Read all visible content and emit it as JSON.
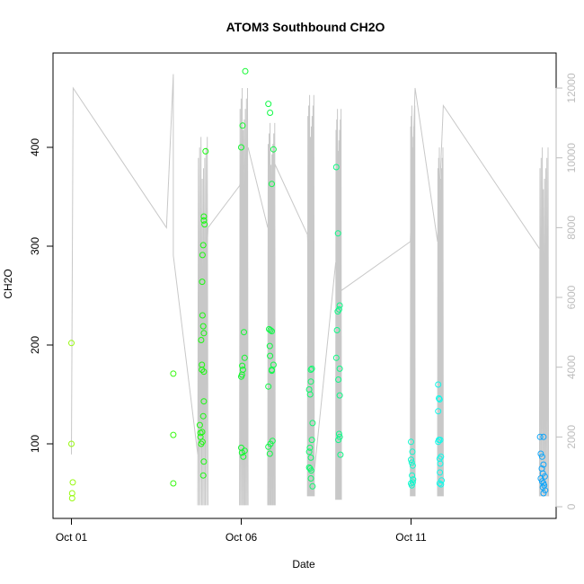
{
  "chart_data": {
    "type": "scatter",
    "title": "ATOM3 Southbound CH2O",
    "xlabel": "Date",
    "ylabel": "CH2O",
    "x_ticks": [
      {
        "label": "Oct 01",
        "day": 1
      },
      {
        "label": "Oct 06",
        "day": 6
      },
      {
        "label": "Oct 11",
        "day": 11
      }
    ],
    "xlim_days": [
      1,
      15.3
    ],
    "ylim": [
      35,
      485
    ],
    "y_ticks": [
      100,
      200,
      300,
      400
    ],
    "y2_ticks": [
      0,
      2000,
      4000,
      6000,
      8000,
      10000,
      12000
    ],
    "y2lim": [
      0,
      12000
    ],
    "grid": false,
    "series": [
      {
        "kind": "points",
        "color_scheme": "green-to-blue by date",
        "points": [
          [
            1.0,
            202
          ],
          [
            1.0,
            100
          ],
          [
            1.04,
            61
          ],
          [
            1.02,
            50
          ],
          [
            1.02,
            45
          ],
          [
            4.0,
            171
          ],
          [
            4.0,
            109
          ],
          [
            4.0,
            60
          ],
          [
            4.78,
            119
          ],
          [
            4.8,
            107
          ],
          [
            4.8,
            111
          ],
          [
            4.82,
            100
          ],
          [
            4.86,
            102
          ],
          [
            4.85,
            112
          ],
          [
            4.82,
            205
          ],
          [
            4.86,
            230
          ],
          [
            4.88,
            219
          ],
          [
            4.84,
            180
          ],
          [
            4.9,
            173
          ],
          [
            4.84,
            175
          ],
          [
            4.9,
            212
          ],
          [
            4.85,
            264
          ],
          [
            4.86,
            291
          ],
          [
            4.88,
            301
          ],
          [
            4.9,
            330
          ],
          [
            4.9,
            326
          ],
          [
            4.92,
            322
          ],
          [
            4.95,
            396
          ],
          [
            4.9,
            143
          ],
          [
            4.88,
            128
          ],
          [
            4.9,
            82
          ],
          [
            4.88,
            68
          ],
          [
            6.0,
            96
          ],
          [
            6.02,
            91
          ],
          [
            6.06,
            87
          ],
          [
            6.1,
            93
          ],
          [
            6.0,
            168
          ],
          [
            6.02,
            170
          ],
          [
            6.05,
            175
          ],
          [
            6.03,
            179
          ],
          [
            6.1,
            187
          ],
          [
            6.08,
            213
          ],
          [
            6.0,
            400
          ],
          [
            6.04,
            422
          ],
          [
            6.12,
            477
          ],
          [
            6.8,
            444
          ],
          [
            6.85,
            435
          ],
          [
            6.9,
            363
          ],
          [
            6.95,
            398
          ],
          [
            6.8,
            158
          ],
          [
            6.82,
            216
          ],
          [
            6.86,
            215
          ],
          [
            6.9,
            214
          ],
          [
            6.84,
            199
          ],
          [
            6.9,
            175
          ],
          [
            6.95,
            180
          ],
          [
            6.9,
            174
          ],
          [
            6.85,
            189
          ],
          [
            6.8,
            97
          ],
          [
            6.86,
            100
          ],
          [
            6.92,
            103
          ],
          [
            6.84,
            90
          ],
          [
            8.0,
            155
          ],
          [
            8.03,
            150
          ],
          [
            8.05,
            175
          ],
          [
            8.08,
            176
          ],
          [
            8.05,
            163
          ],
          [
            8.1,
            121
          ],
          [
            8.0,
            92
          ],
          [
            8.05,
            86
          ],
          [
            8.08,
            104
          ],
          [
            8.02,
            96
          ],
          [
            8.0,
            76
          ],
          [
            8.03,
            75
          ],
          [
            8.06,
            73
          ],
          [
            8.05,
            65
          ],
          [
            8.1,
            57
          ],
          [
            8.8,
            380
          ],
          [
            8.85,
            313
          ],
          [
            8.9,
            240
          ],
          [
            8.88,
            236
          ],
          [
            8.84,
            234
          ],
          [
            8.82,
            215
          ],
          [
            8.8,
            187
          ],
          [
            8.9,
            176
          ],
          [
            8.86,
            165
          ],
          [
            8.9,
            149
          ],
          [
            8.88,
            110
          ],
          [
            8.9,
            107
          ],
          [
            8.86,
            104
          ],
          [
            8.92,
            89
          ],
          [
            11.0,
            102
          ],
          [
            11.04,
            92
          ],
          [
            11.0,
            84
          ],
          [
            11.02,
            81
          ],
          [
            11.05,
            78
          ],
          [
            11.03,
            68
          ],
          [
            11.06,
            64
          ],
          [
            11.0,
            60
          ],
          [
            11.05,
            61
          ],
          [
            11.02,
            58
          ],
          [
            11.8,
            160
          ],
          [
            11.82,
            146
          ],
          [
            11.84,
            145
          ],
          [
            11.8,
            133
          ],
          [
            11.86,
            104
          ],
          [
            11.8,
            102
          ],
          [
            11.82,
            104
          ],
          [
            11.88,
            87
          ],
          [
            11.84,
            85
          ],
          [
            11.86,
            80
          ],
          [
            11.85,
            71
          ],
          [
            11.9,
            63
          ],
          [
            11.88,
            59
          ],
          [
            11.84,
            60
          ],
          [
            14.8,
            107
          ],
          [
            14.9,
            107
          ],
          [
            14.82,
            90
          ],
          [
            14.86,
            87
          ],
          [
            14.9,
            79
          ],
          [
            14.85,
            75
          ],
          [
            14.88,
            70
          ],
          [
            14.94,
            67
          ],
          [
            14.82,
            65
          ],
          [
            14.86,
            62
          ],
          [
            14.9,
            60
          ],
          [
            14.92,
            58
          ],
          [
            14.88,
            56
          ],
          [
            14.95,
            53
          ],
          [
            14.9,
            50
          ]
        ]
      },
      {
        "kind": "line",
        "axis": "right",
        "color": "#c8c8c8",
        "clusters": [
          {
            "x0": 4.72,
            "x1": 5.02,
            "lo": 40,
            "hi": 10600
          },
          {
            "x0": 5.95,
            "x1": 6.2,
            "lo": 40,
            "hi": 12000
          },
          {
            "x0": 6.78,
            "x1": 7.0,
            "lo": 40,
            "hi": 11000
          },
          {
            "x0": 7.95,
            "x1": 8.15,
            "lo": 300,
            "hi": 11800
          },
          {
            "x0": 8.78,
            "x1": 8.95,
            "lo": 200,
            "hi": 11400
          },
          {
            "x0": 10.98,
            "x1": 11.12,
            "lo": 300,
            "hi": 11500
          },
          {
            "x0": 11.78,
            "x1": 11.95,
            "lo": 300,
            "hi": 10300
          },
          {
            "x0": 14.78,
            "x1": 15.05,
            "lo": 300,
            "hi": 10300
          }
        ],
        "connectors": [
          [
            1.0,
            1500
          ],
          [
            1.05,
            12000
          ],
          [
            3.8,
            8000
          ],
          [
            4.0,
            12400
          ],
          [
            4.0,
            7200
          ],
          [
            4.72,
            1500
          ],
          [
            5.02,
            8000
          ],
          [
            5.95,
            9200
          ],
          [
            6.2,
            10300
          ],
          [
            6.78,
            8000
          ],
          [
            7.0,
            9800
          ],
          [
            7.95,
            7800
          ],
          [
            8.15,
            1000
          ],
          [
            8.78,
            7000
          ],
          [
            8.95,
            6200
          ],
          [
            10.98,
            7600
          ],
          [
            11.12,
            12000
          ],
          [
            11.78,
            7600
          ],
          [
            11.95,
            11500
          ],
          [
            14.78,
            7400
          ]
        ]
      }
    ]
  }
}
